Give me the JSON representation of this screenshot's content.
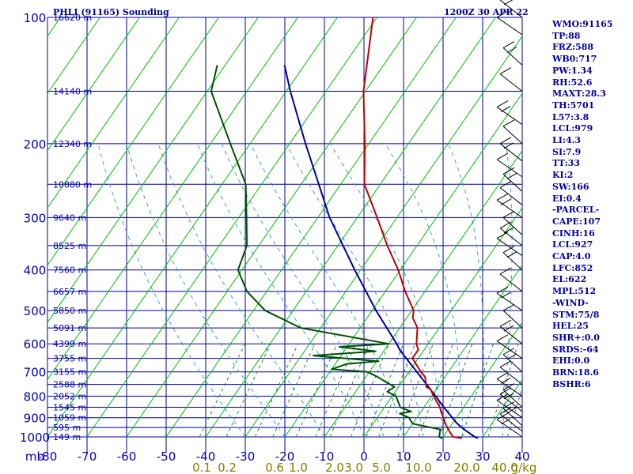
{
  "title": "PHLI (91165) Sounding",
  "datetime": "1200Z 30 APR 22",
  "indices": [
    "WMO:91165",
    "TP:88",
    "FRZ:588",
    "WB0:717",
    "PW:1.34",
    "RH:52.6",
    "MAXT:28.3",
    "TH:5701",
    "L57:3.8",
    "LCL:979",
    "LI:4.3",
    "SI:7.9",
    "TT:33",
    "KI:2",
    "SW:166",
    "EI:0.4",
    "-PARCEL-",
    "CAPE:107",
    "CINH:16",
    "LCL:927",
    "CAP:4.0",
    "LFC:852",
    "EL:622",
    "MPL:512",
    "-WIND-",
    "STM:75/8",
    "HEL:25",
    "SHR+:0.0",
    "SRDS:-64",
    "EHI:0.0",
    "BRN:18.6",
    "BSHR:6"
  ],
  "colors": {
    "background": "#ffffff",
    "grid": "#0000a0",
    "isotherm": "#00c000",
    "temperature": "#c00000",
    "dewpoint": "#005000",
    "parcel": "#0000a0",
    "mixing_ratio": "#2a8a2a",
    "moist_adiabat": "#40a0d0",
    "wind": "#000000"
  },
  "chart_data": {
    "type": "skew-t",
    "pressure_axis_label": "mb",
    "pressure_ticks": [
      100,
      200,
      300,
      400,
      500,
      600,
      700,
      800,
      900,
      1000
    ],
    "pressure_lines": [
      100,
      150,
      200,
      250,
      300,
      350,
      400,
      450,
      500,
      550,
      600,
      650,
      700,
      750,
      800,
      850,
      900,
      950,
      1000
    ],
    "temperature_ticks": [
      -80,
      -70,
      -60,
      -50,
      -40,
      -30,
      -20,
      -10,
      0,
      10,
      20,
      30,
      40
    ],
    "xlim": [
      -80,
      40
    ],
    "ylim": [
      1000,
      100
    ],
    "height_labels": [
      {
        "p": 100,
        "label": "16620 m"
      },
      {
        "p": 150,
        "label": "14140 m"
      },
      {
        "p": 200,
        "label": "12340 m"
      },
      {
        "p": 250,
        "label": "10880 m"
      },
      {
        "p": 300,
        "label": "9640 m"
      },
      {
        "p": 350,
        "label": "8525 m"
      },
      {
        "p": 400,
        "label": "7560 m"
      },
      {
        "p": 450,
        "label": "6657 m"
      },
      {
        "p": 500,
        "label": "5850 m"
      },
      {
        "p": 550,
        "label": "5091 m"
      },
      {
        "p": 600,
        "label": "4399 m"
      },
      {
        "p": 650,
        "label": "3755 m"
      },
      {
        "p": 700,
        "label": "3155 m"
      },
      {
        "p": 750,
        "label": "2588 m"
      },
      {
        "p": 800,
        "label": "2052 m"
      },
      {
        "p": 850,
        "label": "1545 m"
      },
      {
        "p": 900,
        "label": "1059 m"
      },
      {
        "p": 950,
        "label": "595 m"
      },
      {
        "p": 1000,
        "label": "149 m"
      }
    ],
    "mixing_ratio_labels": [
      "0.1",
      "0.2",
      "0.6",
      "1.0",
      "2.0",
      "3.0",
      "5.0",
      "10.0",
      "20.0",
      "40.0",
      "g/kg"
    ],
    "temperature": [
      {
        "p": 1008,
        "t": 25.0
      },
      {
        "p": 1000,
        "t": 22.5
      },
      {
        "p": 960,
        "t": 20.0
      },
      {
        "p": 925,
        "t": 18.0
      },
      {
        "p": 850,
        "t": 14.0
      },
      {
        "p": 800,
        "t": 10.5
      },
      {
        "p": 770,
        "t": 8.5
      },
      {
        "p": 760,
        "t": 7.0
      },
      {
        "p": 720,
        "t": 5.0
      },
      {
        "p": 700,
        "t": 3.0
      },
      {
        "p": 660,
        "t": -0.5
      },
      {
        "p": 650,
        "t": -1.5
      },
      {
        "p": 620,
        "t": -1.5
      },
      {
        "p": 600,
        "t": -3.0
      },
      {
        "p": 550,
        "t": -5.5
      },
      {
        "p": 520,
        "t": -8.5
      },
      {
        "p": 500,
        "t": -9.5
      },
      {
        "p": 450,
        "t": -15.0
      },
      {
        "p": 400,
        "t": -20.5
      },
      {
        "p": 350,
        "t": -27.5
      },
      {
        "p": 300,
        "t": -35.0
      },
      {
        "p": 250,
        "t": -44.0
      },
      {
        "p": 200,
        "t": -51.0
      },
      {
        "p": 150,
        "t": -60.5
      },
      {
        "p": 100,
        "t": -71.0
      }
    ],
    "dewpoint": [
      {
        "p": 1008,
        "t": 20.0
      },
      {
        "p": 1000,
        "t": 19.0
      },
      {
        "p": 960,
        "t": 18.0
      },
      {
        "p": 930,
        "t": 10.0
      },
      {
        "p": 900,
        "t": 8.0
      },
      {
        "p": 880,
        "t": 5.0
      },
      {
        "p": 870,
        "t": 7.5
      },
      {
        "p": 850,
        "t": 4.0
      },
      {
        "p": 800,
        "t": 1.0
      },
      {
        "p": 780,
        "t": -2.0
      },
      {
        "p": 760,
        "t": -1.0
      },
      {
        "p": 740,
        "t": -4.0
      },
      {
        "p": 720,
        "t": -7.0
      },
      {
        "p": 700,
        "t": -10.5
      },
      {
        "p": 690,
        "t": -20.0
      },
      {
        "p": 670,
        "t": -17.0
      },
      {
        "p": 660,
        "t": -9.5
      },
      {
        "p": 640,
        "t": -27.0
      },
      {
        "p": 625,
        "t": -12.0
      },
      {
        "p": 610,
        "t": -22.0
      },
      {
        "p": 600,
        "t": -10.0
      },
      {
        "p": 550,
        "t": -35.0
      },
      {
        "p": 500,
        "t": -47.0
      },
      {
        "p": 450,
        "t": -55.0
      },
      {
        "p": 400,
        "t": -61.0
      },
      {
        "p": 350,
        "t": -63.0
      },
      {
        "p": 300,
        "t": -68.0
      },
      {
        "p": 250,
        "t": -74.0
      },
      {
        "p": 200,
        "t": -85.0
      },
      {
        "p": 150,
        "t": -99.0
      },
      {
        "p": 130,
        "t": -102.0
      }
    ],
    "parcel": [
      {
        "p": 1008,
        "t": 29.0
      },
      {
        "p": 1000,
        "t": 28.0
      },
      {
        "p": 960,
        "t": 24.0
      },
      {
        "p": 927,
        "t": 21.0
      },
      {
        "p": 850,
        "t": 15.0
      },
      {
        "p": 800,
        "t": 11.0
      },
      {
        "p": 700,
        "t": 2.0
      },
      {
        "p": 622,
        "t": -6.0
      },
      {
        "p": 600,
        "t": -8.0
      },
      {
        "p": 500,
        "t": -19.0
      },
      {
        "p": 400,
        "t": -31.5
      },
      {
        "p": 300,
        "t": -47.0
      },
      {
        "p": 200,
        "t": -66.0
      },
      {
        "p": 150,
        "t": -79.0
      },
      {
        "p": 130,
        "t": -85.0
      }
    ],
    "wind_barbs_p": [
      1000,
      970,
      940,
      900,
      870,
      850,
      800,
      750,
      700,
      650,
      600,
      550,
      500,
      450,
      400,
      370,
      350,
      330,
      300,
      280,
      260,
      240,
      220,
      200,
      180,
      150,
      130,
      110,
      100
    ]
  }
}
